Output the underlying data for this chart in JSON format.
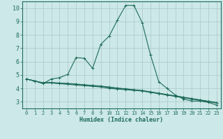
{
  "xlabel": "Humidex (Indice chaleur)",
  "bg_color": "#cce8e8",
  "grid_color": "#b0cccc",
  "line_color": "#1e6b5a",
  "xlim": [
    -0.5,
    23.5
  ],
  "ylim": [
    2.5,
    10.5
  ],
  "xticks": [
    0,
    1,
    2,
    3,
    4,
    5,
    6,
    7,
    8,
    9,
    10,
    11,
    12,
    13,
    14,
    15,
    16,
    17,
    18,
    19,
    20,
    21,
    22,
    23
  ],
  "yticks": [
    3,
    4,
    5,
    6,
    7,
    8,
    9,
    10
  ],
  "line1_x": [
    0,
    1,
    2,
    3,
    4,
    5,
    6,
    7,
    8,
    9,
    10,
    11,
    12,
    13,
    14,
    15,
    16,
    17,
    18,
    19,
    20,
    21,
    22,
    23
  ],
  "line1_y": [
    4.7,
    4.55,
    4.35,
    4.7,
    4.8,
    5.05,
    6.3,
    6.25,
    5.5,
    7.3,
    7.9,
    9.1,
    10.2,
    10.2,
    8.9,
    6.5,
    4.5,
    4.0,
    3.5,
    3.2,
    3.05,
    3.05,
    2.95,
    2.75
  ],
  "line2_x": [
    0,
    1,
    2,
    3,
    4,
    5,
    6,
    7,
    8,
    9,
    10,
    11,
    12,
    13,
    14,
    15,
    16,
    17,
    18,
    19,
    20,
    21,
    22,
    23
  ],
  "line2_y": [
    4.7,
    4.55,
    4.4,
    4.4,
    4.35,
    4.3,
    4.25,
    4.2,
    4.15,
    4.1,
    4.0,
    3.95,
    3.9,
    3.85,
    3.8,
    3.7,
    3.6,
    3.5,
    3.4,
    3.3,
    3.2,
    3.1,
    3.0,
    2.9
  ],
  "line3_x": [
    0,
    1,
    2,
    3,
    4,
    5,
    6,
    7,
    8,
    9,
    10,
    11,
    12,
    13,
    14,
    15,
    16,
    17,
    18,
    19,
    20,
    21,
    22,
    23
  ],
  "line3_y": [
    4.7,
    4.55,
    4.4,
    4.42,
    4.38,
    4.35,
    4.3,
    4.25,
    4.2,
    4.15,
    4.08,
    4.0,
    3.95,
    3.88,
    3.82,
    3.72,
    3.62,
    3.52,
    3.42,
    3.32,
    3.22,
    3.12,
    3.02,
    2.92
  ],
  "line4_x": [
    0,
    1,
    2,
    3,
    4,
    5,
    6,
    7,
    8,
    9,
    10,
    11,
    12,
    13,
    14,
    15,
    16,
    17,
    18,
    19,
    20,
    21,
    22,
    23
  ],
  "line4_y": [
    4.7,
    4.55,
    4.42,
    4.44,
    4.4,
    4.37,
    4.32,
    4.27,
    4.22,
    4.17,
    4.1,
    4.02,
    3.97,
    3.9,
    3.84,
    3.74,
    3.64,
    3.54,
    3.44,
    3.34,
    3.24,
    3.14,
    3.04,
    2.94
  ]
}
